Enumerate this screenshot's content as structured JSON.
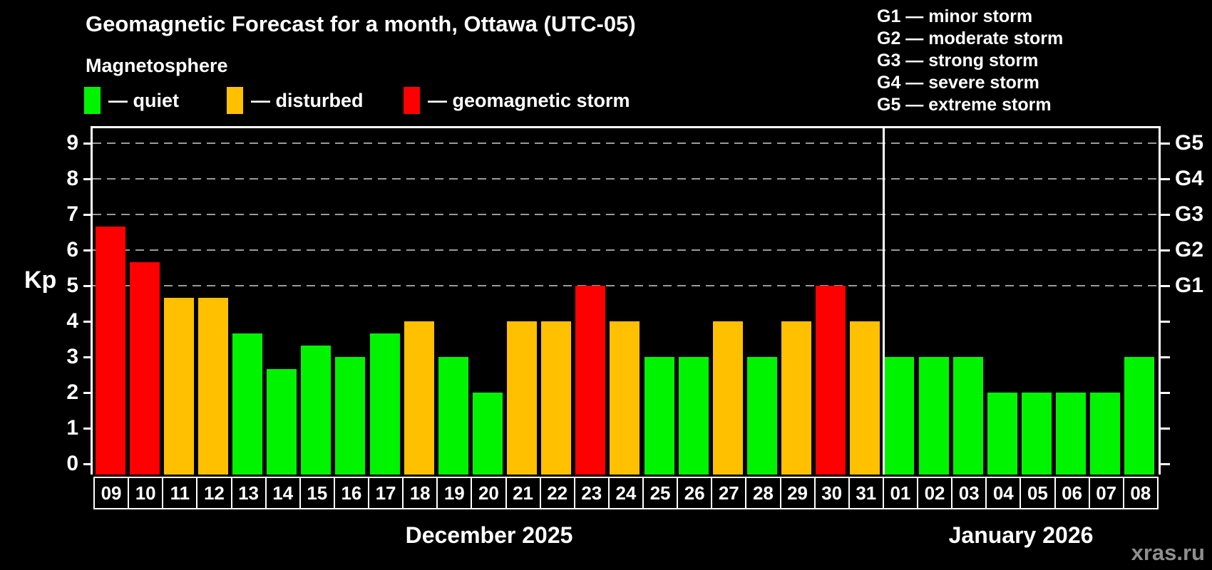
{
  "title": "Geomagnetic Forecast for a month, Ottawa (UTC-05)",
  "subtitle": "Magnetosphere",
  "legend": {
    "items": [
      {
        "key": "quiet",
        "label": "— quiet",
        "color": "#00f400"
      },
      {
        "key": "disturbed",
        "label": "— disturbed",
        "color": "#ffc000"
      },
      {
        "key": "storm",
        "label": "— geomagnetic storm",
        "color": "#ff0000"
      }
    ]
  },
  "g_scale_legend": {
    "items": [
      "G1 — minor storm",
      "G2 — moderate storm",
      "G3 — strong storm",
      "G4 — severe storm",
      "G5 — extreme storm"
    ]
  },
  "y_axis": {
    "label": "Kp",
    "ticks": [
      0,
      1,
      2,
      3,
      4,
      5,
      6,
      7,
      8,
      9
    ]
  },
  "right_axis": {
    "ticks": [
      0,
      1,
      2,
      3,
      4,
      5,
      6,
      7,
      8,
      9
    ],
    "labels": [
      {
        "kp": 5,
        "label": "G1"
      },
      {
        "kp": 6,
        "label": "G2"
      },
      {
        "kp": 7,
        "label": "G3"
      },
      {
        "kp": 8,
        "label": "G4"
      },
      {
        "kp": 9,
        "label": "G5"
      }
    ]
  },
  "months": [
    {
      "label": "December 2025",
      "days": 23
    },
    {
      "label": "January 2026",
      "days": 8
    }
  ],
  "watermark": "xras.ru",
  "colors": {
    "background": "#000000",
    "text": "#ffffff",
    "quiet": "#00f400",
    "disturbed": "#ffc000",
    "storm": "#ff0000",
    "grid": "#9a9a9a",
    "watermark": "#8f8f8f"
  },
  "chart_data": {
    "type": "bar",
    "title": "Geomagnetic Forecast for a month, Ottawa (UTC-05)",
    "xlabel": "",
    "ylabel": "Kp",
    "ylim": [
      0,
      9
    ],
    "grid": "dashed horizontal at Kp 5-9",
    "gridlines_kp": [
      5,
      6,
      7,
      8,
      9
    ],
    "legend_position": "top-left",
    "categories": [
      "09",
      "10",
      "11",
      "12",
      "13",
      "14",
      "15",
      "16",
      "17",
      "18",
      "19",
      "20",
      "21",
      "22",
      "23",
      "24",
      "25",
      "26",
      "27",
      "28",
      "29",
      "30",
      "31",
      "01",
      "02",
      "03",
      "04",
      "05",
      "06",
      "07",
      "08"
    ],
    "values": [
      6.67,
      5.67,
      4.67,
      4.67,
      3.67,
      2.67,
      3.33,
      3,
      3.67,
      4,
      3,
      2,
      4,
      4,
      5,
      4,
      3,
      3,
      4,
      3,
      4,
      5,
      4,
      3,
      3,
      3,
      2,
      2,
      2,
      2,
      3
    ],
    "levels": [
      "storm",
      "storm",
      "disturbed",
      "disturbed",
      "quiet",
      "quiet",
      "quiet",
      "quiet",
      "quiet",
      "disturbed",
      "quiet",
      "quiet",
      "disturbed",
      "disturbed",
      "storm",
      "disturbed",
      "quiet",
      "quiet",
      "disturbed",
      "quiet",
      "disturbed",
      "storm",
      "disturbed",
      "quiet",
      "quiet",
      "quiet",
      "quiet",
      "quiet",
      "quiet",
      "quiet",
      "quiet"
    ]
  }
}
